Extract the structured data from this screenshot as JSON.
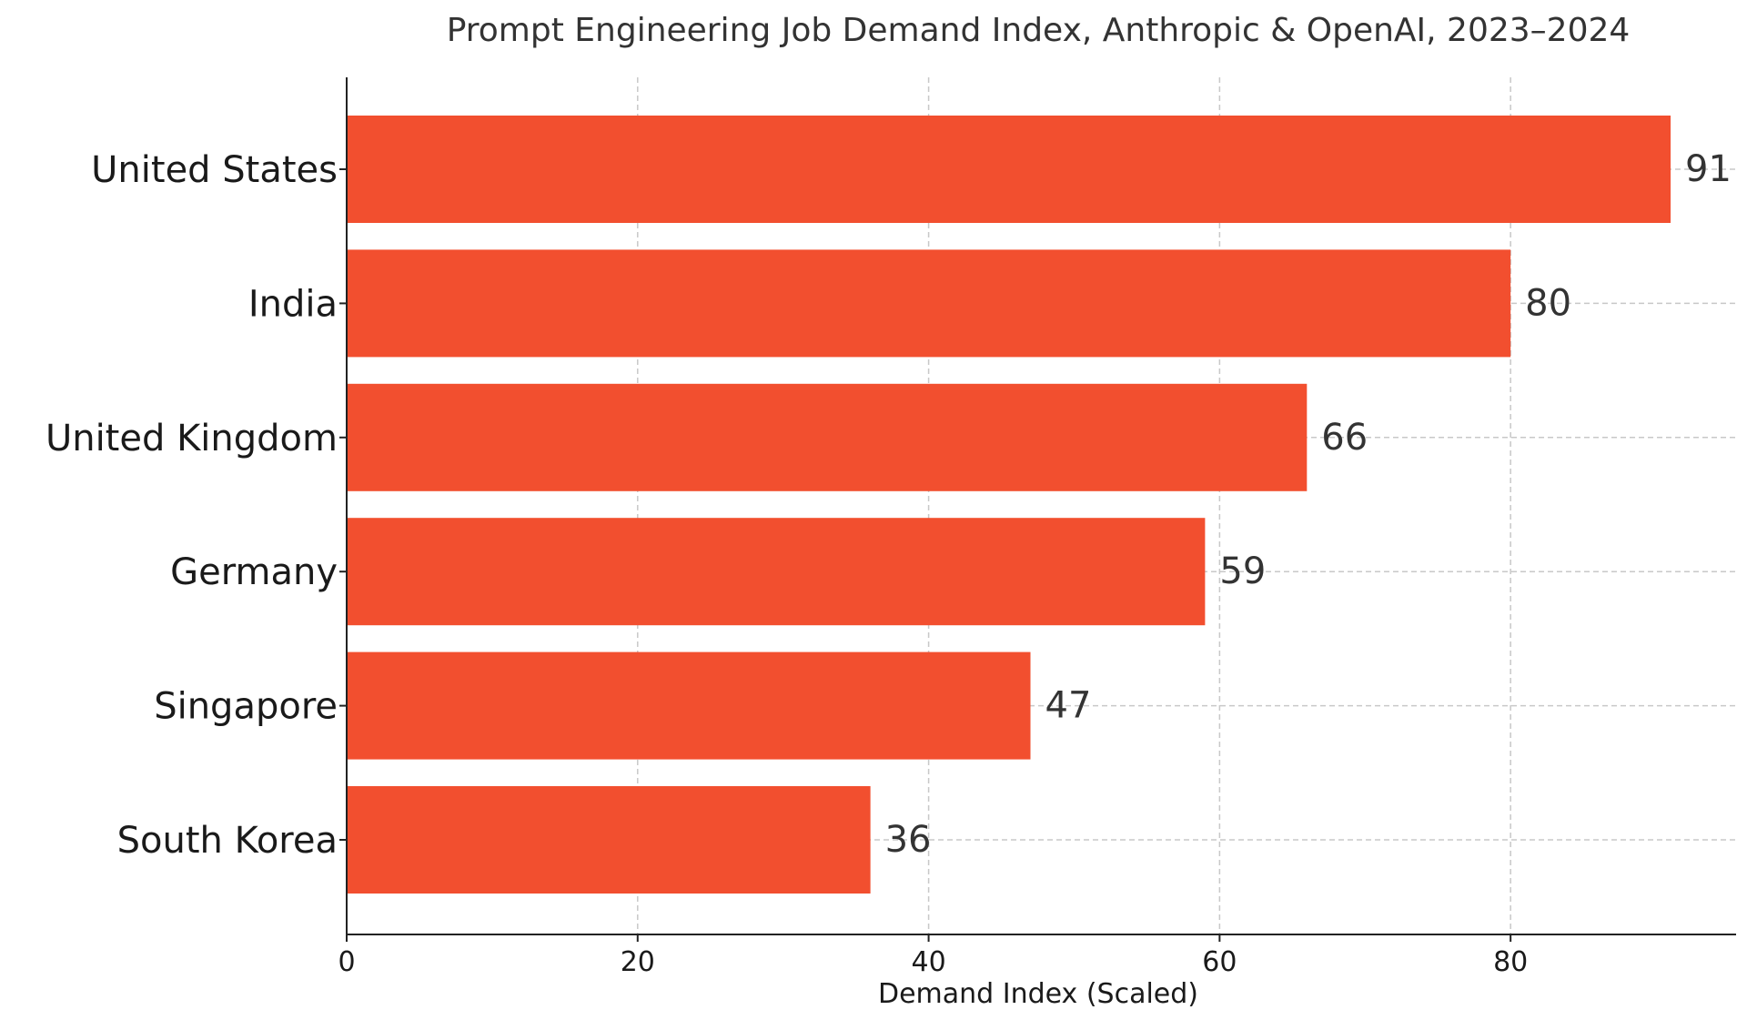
{
  "chart_data": {
    "type": "bar",
    "orientation": "horizontal",
    "title": "Prompt Engineering Job Demand Index, Anthropic & OpenAI, 2023–2024",
    "xlabel": "Demand Index (Scaled)",
    "ylabel": "",
    "categories": [
      "United States",
      "India",
      "United Kingdom",
      "Germany",
      "Singapore",
      "South Korea"
    ],
    "values": [
      91,
      80,
      66,
      59,
      47,
      36
    ],
    "value_labels": [
      "91",
      "80",
      "66",
      "59",
      "47",
      "36"
    ],
    "xlim": [
      0,
      95.5
    ],
    "xticks": [
      0,
      20,
      40,
      60,
      80
    ],
    "xtick_labels": [
      "0",
      "20",
      "40",
      "60",
      "80"
    ],
    "grid": true,
    "legend": "none",
    "bar_color": "#f24f2f",
    "text_color": "#333333",
    "label_color": "#1a1a1a",
    "grid_color": "#c8c8c8",
    "axis_color": "#222222"
  }
}
